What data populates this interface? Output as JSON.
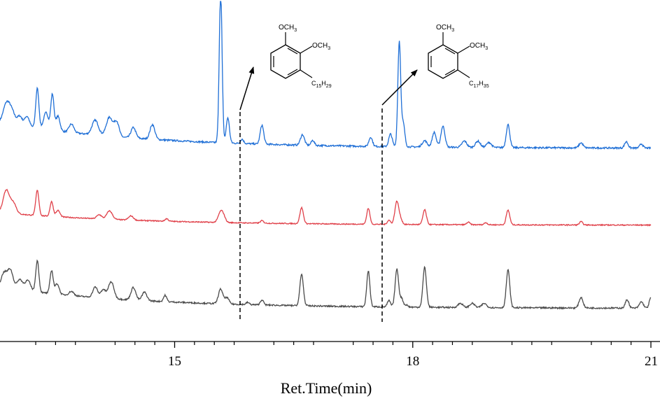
{
  "chart_data": {
    "type": "line",
    "title": "",
    "xlabel": "Ret.Time(min)",
    "ylabel": "",
    "xlim": [
      12.8,
      21
    ],
    "x_ticks": [
      15,
      18,
      21
    ],
    "x_minor_ticks": [
      13.25,
      13.5,
      13.75,
      14.25,
      14.5,
      14.75,
      15.25,
      15.5,
      15.75,
      16.25,
      16.5,
      16.75,
      17.25,
      17.5,
      17.75,
      18.25,
      18.5,
      18.75,
      19.25,
      19.5,
      19.75,
      20.25,
      20.5,
      20.75
    ],
    "grid": false,
    "legend": "none",
    "series": [
      {
        "color": "#1f6fd6",
        "baseline_start": 0.62,
        "baseline_end": 0.05,
        "noise": 0.04,
        "peaks": [
          {
            "x": 12.88,
            "h": 0.45,
            "w": 0.04
          },
          {
            "x": 12.95,
            "h": 0.3,
            "w": 0.04
          },
          {
            "x": 13.05,
            "h": 0.22,
            "w": 0.03
          },
          {
            "x": 13.14,
            "h": 0.25,
            "w": 0.03
          },
          {
            "x": 13.27,
            "h": 0.95,
            "w": 0.02
          },
          {
            "x": 13.38,
            "h": 0.4,
            "w": 0.03
          },
          {
            "x": 13.46,
            "h": 0.85,
            "w": 0.02
          },
          {
            "x": 13.53,
            "h": 0.35,
            "w": 0.025
          },
          {
            "x": 13.7,
            "h": 0.2,
            "w": 0.03
          },
          {
            "x": 14.0,
            "h": 0.35,
            "w": 0.04
          },
          {
            "x": 14.18,
            "h": 0.45,
            "w": 0.04
          },
          {
            "x": 14.27,
            "h": 0.35,
            "w": 0.03
          },
          {
            "x": 14.48,
            "h": 0.25,
            "w": 0.03
          },
          {
            "x": 14.72,
            "h": 0.35,
            "w": 0.03
          },
          {
            "x": 15.58,
            "h": 3.6,
            "w": 0.018
          },
          {
            "x": 15.67,
            "h": 0.6,
            "w": 0.02
          },
          {
            "x": 15.85,
            "h": 0.1,
            "w": 0.02
          },
          {
            "x": 16.1,
            "h": 0.45,
            "w": 0.022
          },
          {
            "x": 16.61,
            "h": 0.25,
            "w": 0.025
          },
          {
            "x": 16.74,
            "h": 0.12,
            "w": 0.02
          },
          {
            "x": 17.47,
            "h": 0.22,
            "w": 0.022
          },
          {
            "x": 17.72,
            "h": 0.3,
            "w": 0.022
          },
          {
            "x": 17.83,
            "h": 2.5,
            "w": 0.018
          },
          {
            "x": 17.88,
            "h": 0.55,
            "w": 0.02
          },
          {
            "x": 18.15,
            "h": 0.15,
            "w": 0.03
          },
          {
            "x": 18.27,
            "h": 0.35,
            "w": 0.025
          },
          {
            "x": 18.38,
            "h": 0.5,
            "w": 0.025
          },
          {
            "x": 18.65,
            "h": 0.15,
            "w": 0.03
          },
          {
            "x": 18.82,
            "h": 0.15,
            "w": 0.03
          },
          {
            "x": 18.96,
            "h": 0.12,
            "w": 0.03
          },
          {
            "x": 19.2,
            "h": 0.55,
            "w": 0.022
          },
          {
            "x": 20.12,
            "h": 0.12,
            "w": 0.025
          },
          {
            "x": 20.69,
            "h": 0.15,
            "w": 0.022
          },
          {
            "x": 20.88,
            "h": 0.1,
            "w": 0.02
          }
        ]
      },
      {
        "color": "#e0414a",
        "baseline_start": 0.3,
        "baseline_end": 0.02,
        "noise": 0.025,
        "peaks": [
          {
            "x": 12.88,
            "h": 0.55,
            "w": 0.04
          },
          {
            "x": 12.97,
            "h": 0.25,
            "w": 0.035
          },
          {
            "x": 13.27,
            "h": 0.6,
            "w": 0.02
          },
          {
            "x": 13.45,
            "h": 0.35,
            "w": 0.02
          },
          {
            "x": 13.53,
            "h": 0.15,
            "w": 0.025
          },
          {
            "x": 14.05,
            "h": 0.1,
            "w": 0.03
          },
          {
            "x": 14.18,
            "h": 0.2,
            "w": 0.035
          },
          {
            "x": 14.45,
            "h": 0.1,
            "w": 0.03
          },
          {
            "x": 14.9,
            "h": 0.06,
            "w": 0.02
          },
          {
            "x": 15.58,
            "h": 0.25,
            "w": 0.03
          },
          {
            "x": 15.62,
            "h": 0.1,
            "w": 0.025
          },
          {
            "x": 16.1,
            "h": 0.06,
            "w": 0.02
          },
          {
            "x": 16.6,
            "h": 0.38,
            "w": 0.022
          },
          {
            "x": 17.44,
            "h": 0.38,
            "w": 0.02
          },
          {
            "x": 17.7,
            "h": 0.1,
            "w": 0.02
          },
          {
            "x": 17.8,
            "h": 0.55,
            "w": 0.025
          },
          {
            "x": 17.85,
            "h": 0.1,
            "w": 0.02
          },
          {
            "x": 18.15,
            "h": 0.35,
            "w": 0.022
          },
          {
            "x": 18.7,
            "h": 0.06,
            "w": 0.02
          },
          {
            "x": 18.92,
            "h": 0.05,
            "w": 0.02
          },
          {
            "x": 19.2,
            "h": 0.35,
            "w": 0.022
          },
          {
            "x": 20.12,
            "h": 0.08,
            "w": 0.02
          }
        ]
      },
      {
        "color": "#4a4a4a",
        "baseline_start": 0.5,
        "baseline_end": 0.04,
        "noise": 0.035,
        "peaks": [
          {
            "x": 12.85,
            "h": 0.35,
            "w": 0.035
          },
          {
            "x": 12.93,
            "h": 0.45,
            "w": 0.035
          },
          {
            "x": 13.05,
            "h": 0.25,
            "w": 0.035
          },
          {
            "x": 13.15,
            "h": 0.25,
            "w": 0.035
          },
          {
            "x": 13.27,
            "h": 0.75,
            "w": 0.02
          },
          {
            "x": 13.45,
            "h": 0.55,
            "w": 0.02
          },
          {
            "x": 13.52,
            "h": 0.25,
            "w": 0.025
          },
          {
            "x": 13.7,
            "h": 0.1,
            "w": 0.03
          },
          {
            "x": 14.0,
            "h": 0.25,
            "w": 0.03
          },
          {
            "x": 14.1,
            "h": 0.2,
            "w": 0.03
          },
          {
            "x": 14.2,
            "h": 0.4,
            "w": 0.035
          },
          {
            "x": 14.48,
            "h": 0.3,
            "w": 0.03
          },
          {
            "x": 14.62,
            "h": 0.2,
            "w": 0.03
          },
          {
            "x": 14.88,
            "h": 0.15,
            "w": 0.02
          },
          {
            "x": 15.58,
            "h": 0.35,
            "w": 0.028
          },
          {
            "x": 15.66,
            "h": 0.15,
            "w": 0.025
          },
          {
            "x": 15.92,
            "h": 0.05,
            "w": 0.02
          },
          {
            "x": 16.1,
            "h": 0.12,
            "w": 0.02
          },
          {
            "x": 16.6,
            "h": 0.75,
            "w": 0.022
          },
          {
            "x": 17.44,
            "h": 0.85,
            "w": 0.02
          },
          {
            "x": 17.7,
            "h": 0.15,
            "w": 0.02
          },
          {
            "x": 17.8,
            "h": 0.9,
            "w": 0.022
          },
          {
            "x": 17.86,
            "h": 0.2,
            "w": 0.02
          },
          {
            "x": 17.92,
            "h": 0.05,
            "w": 0.02
          },
          {
            "x": 18.15,
            "h": 0.95,
            "w": 0.022
          },
          {
            "x": 18.6,
            "h": 0.1,
            "w": 0.03
          },
          {
            "x": 18.75,
            "h": 0.1,
            "w": 0.03
          },
          {
            "x": 18.9,
            "h": 0.1,
            "w": 0.03
          },
          {
            "x": 19.2,
            "h": 0.9,
            "w": 0.022
          },
          {
            "x": 20.12,
            "h": 0.25,
            "w": 0.025
          },
          {
            "x": 20.7,
            "h": 0.2,
            "w": 0.022
          },
          {
            "x": 20.88,
            "h": 0.15,
            "w": 0.025
          },
          {
            "x": 21.0,
            "h": 0.25,
            "w": 0.02
          }
        ]
      }
    ],
    "annotations": [
      {
        "x": 16.1,
        "structure": "structure-c15h29",
        "substituent": "C15H29"
      },
      {
        "x": 17.85,
        "structure": "structure-c17h35",
        "substituent": "C17H35"
      }
    ]
  },
  "labels": {
    "methoxy_top": "OCH3",
    "methoxy_side": "OCH3",
    "chain_c15": "C15H29",
    "chain_c17": "C17H35"
  }
}
